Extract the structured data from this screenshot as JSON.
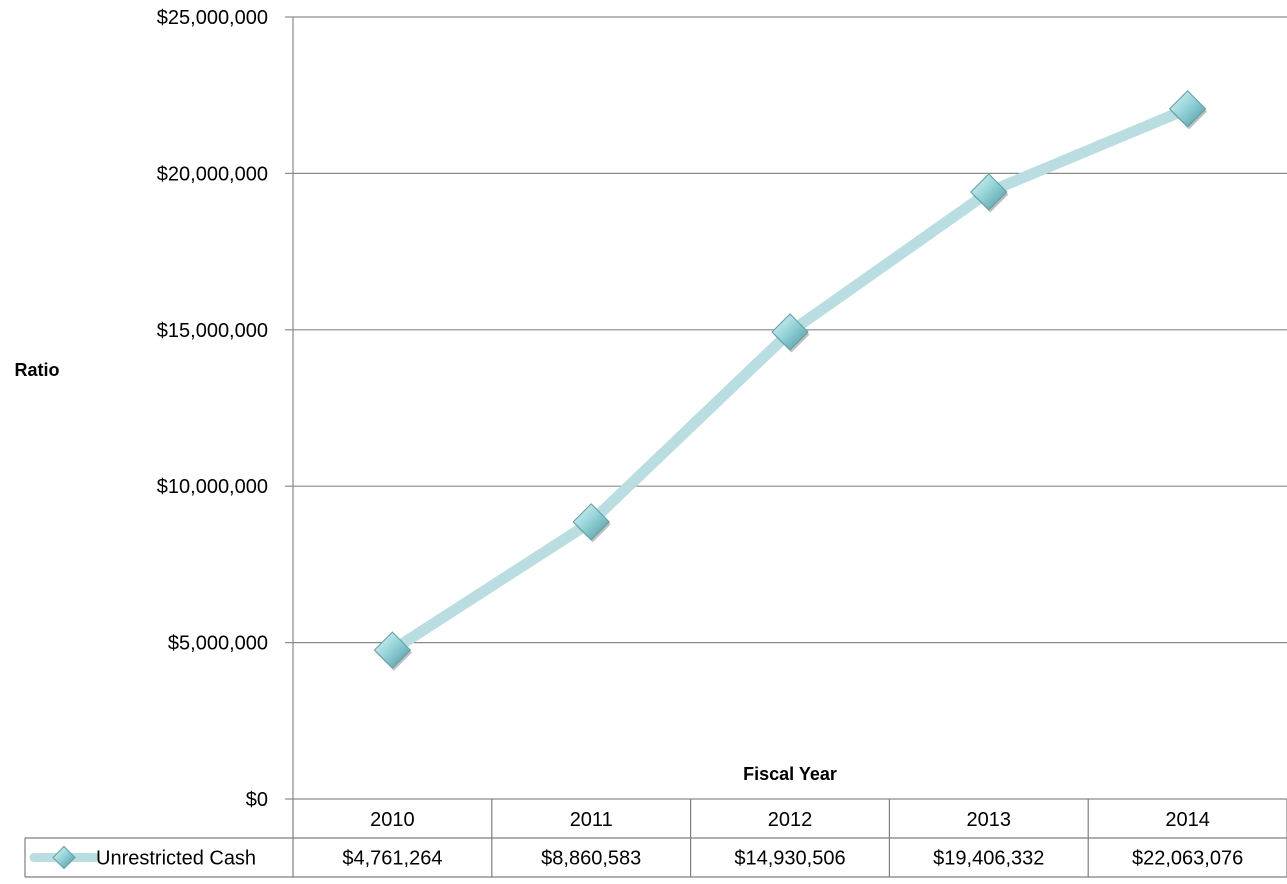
{
  "chart_data": {
    "type": "line",
    "title": "",
    "xlabel": "Fiscal Year",
    "ylabel": "Ratio",
    "categories": [
      "2010",
      "2011",
      "2012",
      "2013",
      "2014"
    ],
    "series": [
      {
        "name": "Unrestricted Cash",
        "values": [
          4761264,
          8860583,
          14930506,
          19406332,
          22063076
        ],
        "value_labels": [
          "$4,761,264",
          "$8,860,583",
          "$14,930,506",
          "$19,406,332",
          "$22,063,076"
        ],
        "color": "#b9dde0",
        "marker": "diamond",
        "marker_color": "#8fd0d6"
      }
    ],
    "ylim": [
      0,
      25000000
    ],
    "yticks": [
      0,
      5000000,
      10000000,
      15000000,
      20000000,
      25000000
    ],
    "ytick_labels": [
      "$0",
      "$5,000,000",
      "$10,000,000",
      "$15,000,000",
      "$20,000,000",
      "$25,000,000"
    ],
    "grid": true,
    "legend": "data-table",
    "data_table": true
  }
}
